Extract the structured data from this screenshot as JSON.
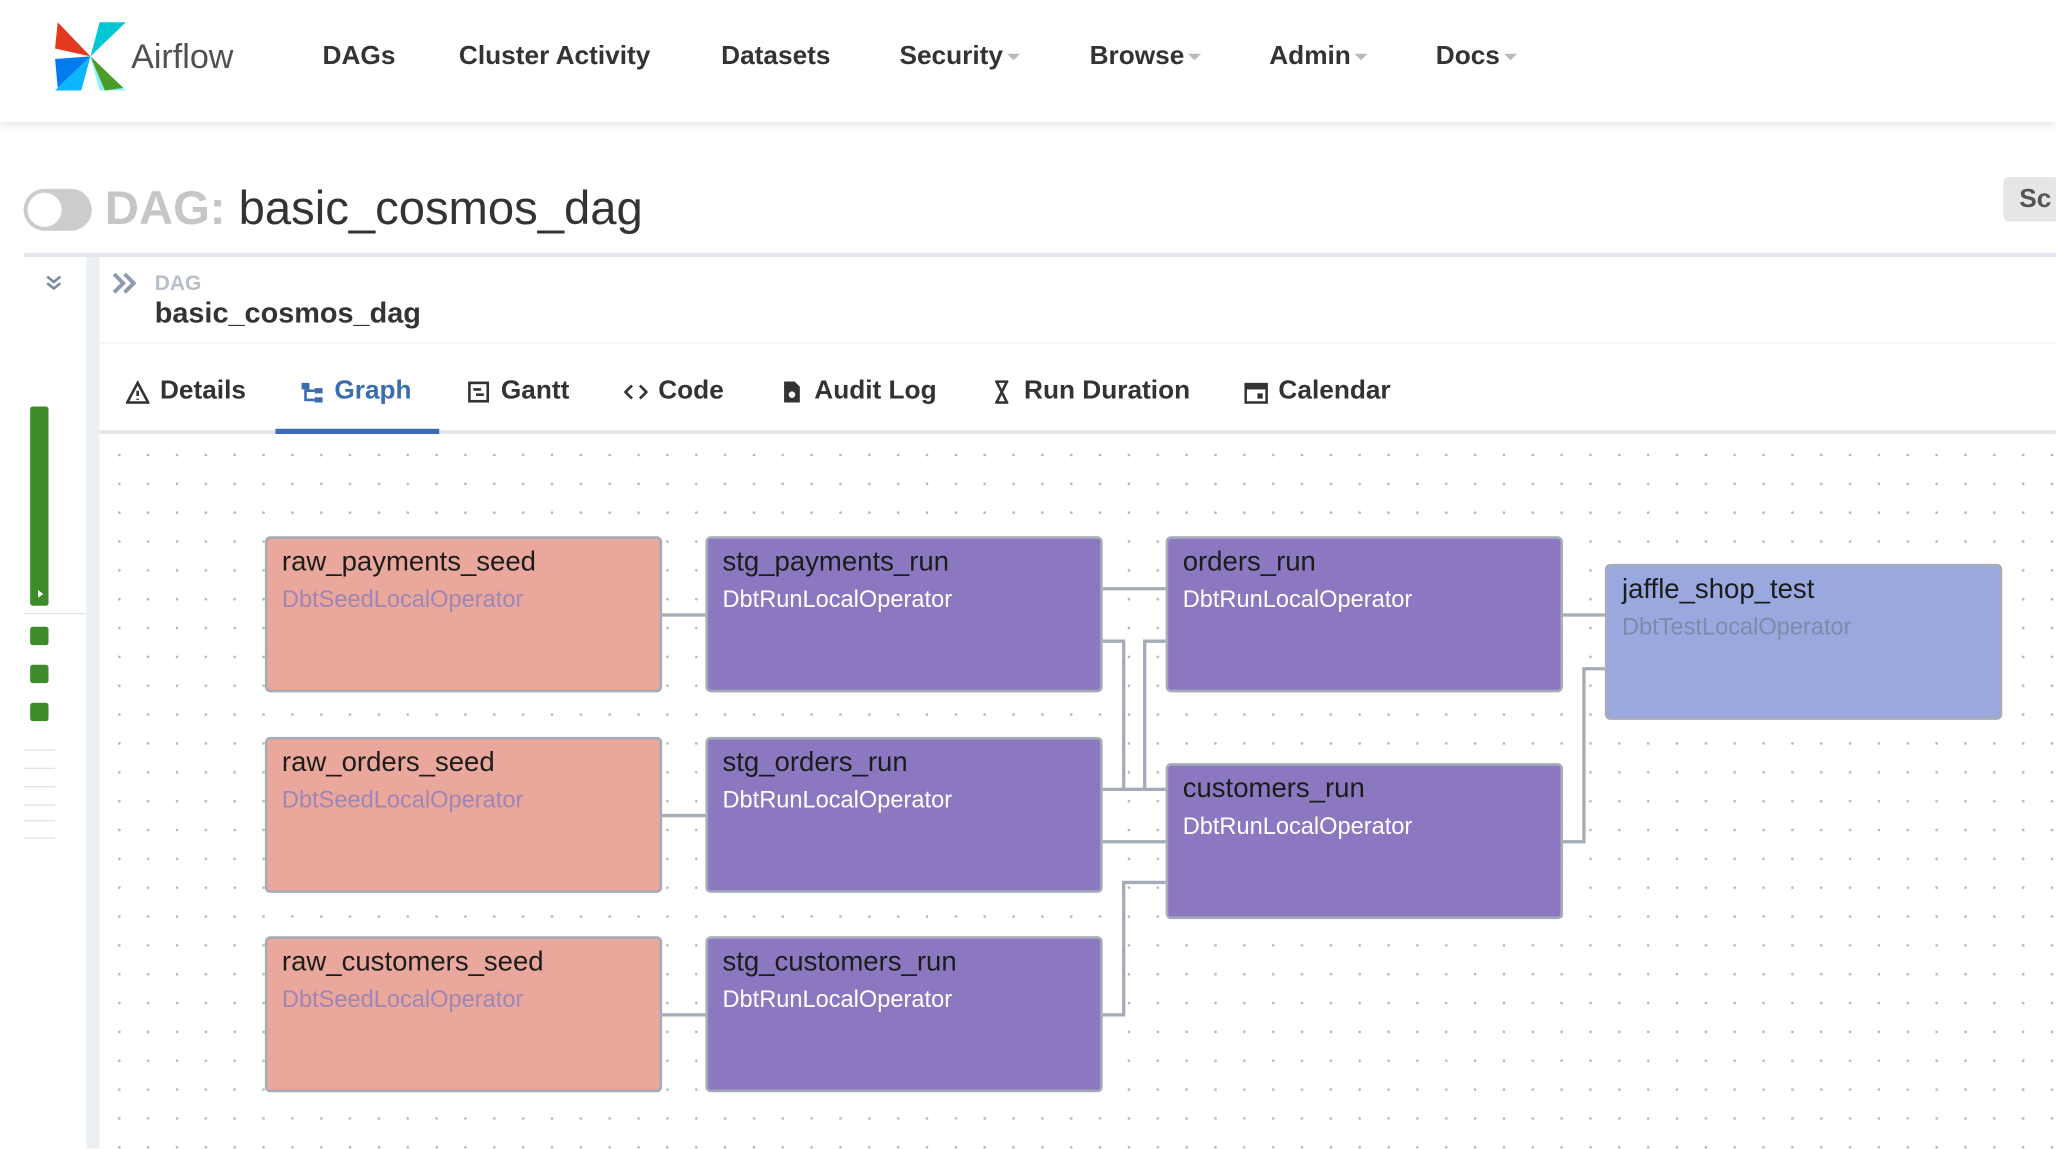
{
  "brand": "Airflow",
  "nav": [
    "DAGs",
    "Cluster Activity",
    "Datasets",
    "Security",
    "Browse",
    "Admin",
    "Docs"
  ],
  "dag_header": {
    "prefix": "DAG:",
    "name": "basic_cosmos_dag"
  },
  "schedule_button": "Sc",
  "breadcrumb": {
    "label": "DAG",
    "name": "basic_cosmos_dag"
  },
  "tabs": [
    {
      "label": "Details",
      "active": false
    },
    {
      "label": "Graph",
      "active": true
    },
    {
      "label": "Gantt",
      "active": false
    },
    {
      "label": "Code",
      "active": false
    },
    {
      "label": "Audit Log",
      "active": false
    },
    {
      "label": "Run Duration",
      "active": false
    },
    {
      "label": "Calendar",
      "active": false
    }
  ],
  "nodes": [
    {
      "label": "raw_payments_seed",
      "operator": "DbtSeedLocalOperator",
      "color": "#e9a89b",
      "operator_color": "#9f86b5"
    },
    {
      "label": "stg_payments_run",
      "operator": "DbtRunLocalOperator",
      "color": "#8b78c1",
      "operator_color": "#ffffff"
    },
    {
      "label": "orders_run",
      "operator": "DbtRunLocalOperator",
      "color": "#8b78c1",
      "operator_color": "#ffffff"
    },
    {
      "label": "jaffle_shop_test",
      "operator": "DbtTestLocalOperator",
      "color": "#9aa8e0",
      "operator_color": "#7f8aa8"
    },
    {
      "label": "raw_orders_seed",
      "operator": "DbtSeedLocalOperator",
      "color": "#e9a89b",
      "operator_color": "#9f86b5"
    },
    {
      "label": "stg_orders_run",
      "operator": "DbtRunLocalOperator",
      "color": "#8b78c1",
      "operator_color": "#ffffff"
    },
    {
      "label": "customers_run",
      "operator": "DbtRunLocalOperator",
      "color": "#8b78c1",
      "operator_color": "#ffffff"
    },
    {
      "label": "raw_customers_seed",
      "operator": "DbtSeedLocalOperator",
      "color": "#e9a89b",
      "operator_color": "#9f86b5"
    },
    {
      "label": "stg_customers_run",
      "operator": "DbtRunLocalOperator",
      "color": "#8b78c1",
      "operator_color": "#ffffff"
    }
  ]
}
